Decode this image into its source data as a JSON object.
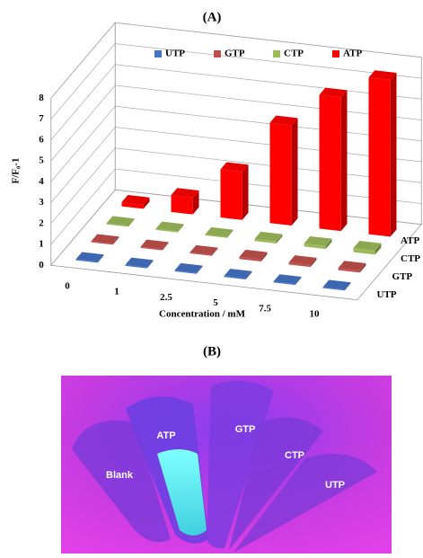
{
  "chart_data": {
    "type": "bar3d",
    "title": "(A)",
    "x_label": "Concentration / mM",
    "y_label": "F/F₀-1",
    "categories": [
      "0",
      "1",
      "2.5",
      "5",
      "7.5",
      "10"
    ],
    "series": [
      {
        "name": "UTP",
        "color": "#4472c4",
        "values": [
          0.05,
          0.05,
          0.05,
          0.05,
          0.05,
          0.05
        ]
      },
      {
        "name": "GTP",
        "color": "#c0504d",
        "values": [
          0.05,
          0.05,
          0.05,
          0.1,
          0.1,
          0.1
        ]
      },
      {
        "name": "CTP",
        "color": "#9bbb59",
        "values": [
          0.05,
          0.05,
          0.05,
          0.1,
          0.15,
          0.2
        ]
      },
      {
        "name": "ATP",
        "color": "#ff0000",
        "values": [
          0.2,
          0.8,
          2.3,
          4.8,
          6.4,
          7.5
        ]
      }
    ],
    "ylim": [
      0,
      8
    ],
    "yticks": [
      0,
      1,
      2,
      3,
      4,
      5,
      6,
      7,
      8
    ],
    "grid": true
  },
  "panel_b": {
    "title": "(B)",
    "labels": [
      "Blank",
      "ATP",
      "GTP",
      "CTP",
      "UTP"
    ]
  }
}
